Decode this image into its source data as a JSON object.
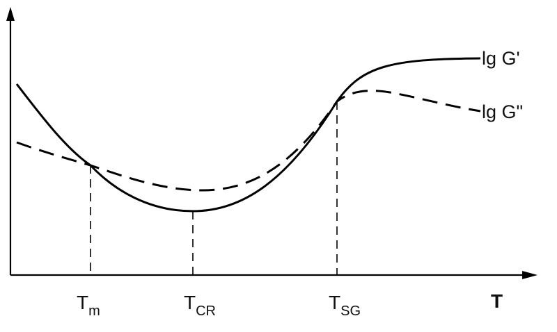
{
  "chart_data": {
    "type": "line",
    "title": "",
    "xlabel": "T",
    "ylabel": "",
    "x": [
      0,
      1,
      2,
      3,
      4,
      5,
      6,
      7,
      8,
      9,
      10
    ],
    "series": [
      {
        "name": "lg G'",
        "style": "solid",
        "color": "#000000",
        "values": [
          7.5,
          5.2,
          2.9,
          2.3,
          2.9,
          4.9,
          7.3,
          8.6,
          8.9,
          9.0,
          9.0
        ]
      },
      {
        "name": "lg G\"",
        "style": "dashed",
        "color": "#000000",
        "values": [
          5.0,
          4.3,
          3.6,
          3.3,
          3.8,
          5.1,
          7.1,
          7.7,
          7.5,
          7.2,
          6.8
        ]
      }
    ],
    "markers": [
      {
        "label": "T",
        "subscript": "m"
      },
      {
        "label": "T",
        "subscript": "CR"
      },
      {
        "label": "T",
        "subscript": "SG"
      }
    ],
    "grid": false,
    "legend": "inline-right"
  }
}
